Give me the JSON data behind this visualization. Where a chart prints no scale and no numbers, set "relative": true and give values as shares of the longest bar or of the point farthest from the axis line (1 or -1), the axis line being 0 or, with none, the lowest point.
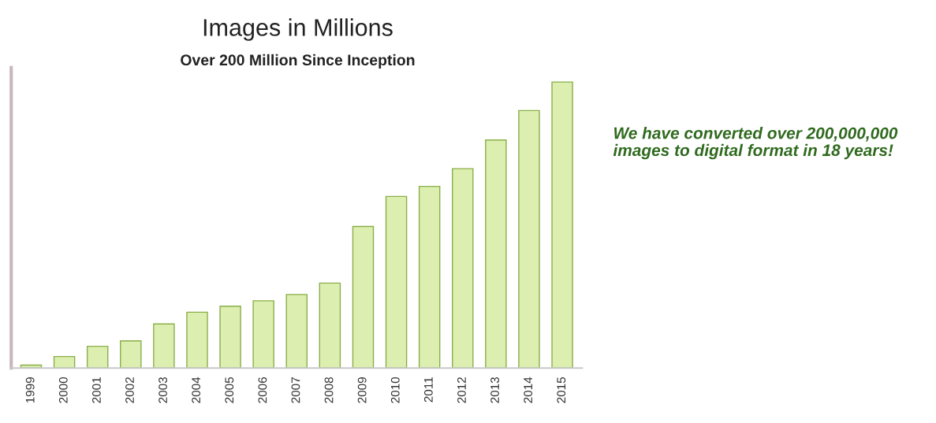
{
  "chart_data": {
    "type": "bar",
    "title": "Images in Millions",
    "subtitle": "Over 200 Million Since Inception",
    "categories": [
      "1999",
      "2000",
      "2001",
      "2002",
      "2003",
      "2004",
      "2005",
      "2006",
      "2007",
      "2008",
      "2009",
      "2010",
      "2011",
      "2012",
      "2013",
      "2014",
      "2015"
    ],
    "values": [
      0.01,
      0.04,
      0.076,
      0.095,
      0.154,
      0.195,
      0.216,
      0.235,
      0.257,
      0.297,
      0.495,
      0.6,
      0.635,
      0.697,
      0.797,
      0.9,
      1.0
    ],
    "color": "#dcefb0",
    "relative": true,
    "annotations": [
      "We have converted over 200,000,000 images to digital format in 18 years!"
    ]
  }
}
